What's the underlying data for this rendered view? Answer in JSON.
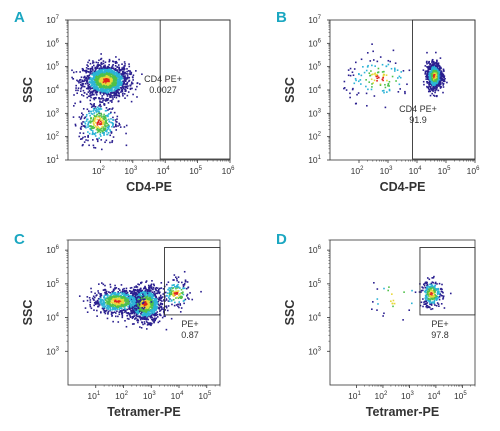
{
  "colors": {
    "panel_letter": "#1ba7c1",
    "axis": "#333333",
    "density_low": "#2a1f8f",
    "density_mid_low": "#2bb3d6",
    "density_mid": "#4fc14a",
    "density_mid_high": "#e8d83a",
    "density_high": "#e0241c"
  },
  "chart_data": [
    {
      "panel": "A",
      "type": "scatter",
      "style": "density dot plot",
      "xlabel": "CD4-PE",
      "ylabel": "SSC",
      "xscale": "log",
      "yscale": "log",
      "xlim": [
        10.0,
        1000000.0
      ],
      "ylim": [
        10.0,
        10000000.0
      ],
      "xticks": [
        "10^2",
        "10^3",
        "10^4",
        "10^5",
        "10^6"
      ],
      "yticks": [
        "10^1",
        "10^2",
        "10^3",
        "10^4",
        "10^5",
        "10^6",
        "10^7"
      ],
      "populations": [
        {
          "x_center": 150,
          "y_center": 25000,
          "x_spread": 0.35,
          "y_spread": 0.35,
          "count": 1500
        },
        {
          "x_center": 90,
          "y_center": 400,
          "x_spread": 0.3,
          "y_spread": 0.45,
          "count": 350
        }
      ],
      "gate": {
        "name": "CD4 PE+",
        "value": "0.0027",
        "x_range": [
          7000,
          1000000
        ],
        "y_range": [
          11,
          10000000
        ]
      }
    },
    {
      "panel": "B",
      "type": "scatter",
      "style": "density dot plot",
      "xlabel": "CD4-PE",
      "ylabel": "SSC",
      "xscale": "log",
      "yscale": "log",
      "xlim": [
        10.0,
        1000000.0
      ],
      "ylim": [
        10.0,
        10000000.0
      ],
      "xticks": [
        "10^2",
        "10^3",
        "10^4",
        "10^5",
        "10^6"
      ],
      "yticks": [
        "10^1",
        "10^2",
        "10^3",
        "10^4",
        "10^5",
        "10^6",
        "10^7"
      ],
      "populations": [
        {
          "x_center": 40000,
          "y_center": 40000,
          "x_spread": 0.13,
          "y_spread": 0.28,
          "count": 900
        },
        {
          "x_center": 500,
          "y_center": 30000,
          "x_spread": 0.6,
          "y_spread": 0.45,
          "count": 130
        }
      ],
      "gate": {
        "name": "CD4 PE+",
        "value": "91.9",
        "x_range": [
          7000,
          1000000
        ],
        "y_range": [
          11,
          10000000
        ]
      }
    },
    {
      "panel": "C",
      "type": "scatter",
      "style": "density dot plot",
      "xlabel": "Tetramer-PE",
      "ylabel": "SSC",
      "xscale": "log",
      "yscale": "log",
      "xlim": [
        1.0,
        300000.0
      ],
      "ylim": [
        100.0,
        2000000.0
      ],
      "xticks": [
        "10^1",
        "10^2",
        "10^3",
        "10^4",
        "10^5"
      ],
      "yticks": [
        "10^3",
        "10^4",
        "10^5",
        "10^6"
      ],
      "populations": [
        {
          "x_center": 600,
          "y_center": 25000,
          "x_spread": 0.3,
          "y_spread": 0.25,
          "count": 1100
        },
        {
          "x_center": 60,
          "y_center": 30000,
          "x_spread": 0.45,
          "y_spread": 0.18,
          "count": 700
        },
        {
          "x_center": 8000,
          "y_center": 50000,
          "x_spread": 0.25,
          "y_spread": 0.2,
          "count": 150
        }
      ],
      "gate": {
        "name": "PE+",
        "value": "0.87",
        "x_range": [
          3000,
          300000
        ],
        "y_range": [
          12000,
          1200000
        ]
      }
    },
    {
      "panel": "D",
      "type": "scatter",
      "style": "density dot plot",
      "xlabel": "Tetramer-PE",
      "ylabel": "SSC",
      "xscale": "log",
      "yscale": "log",
      "xlim": [
        1.0,
        300000.0
      ],
      "ylim": [
        100.0,
        2000000.0
      ],
      "xticks": [
        "10^1",
        "10^2",
        "10^3",
        "10^4",
        "10^5"
      ],
      "yticks": [
        "10^3",
        "10^4",
        "10^5",
        "10^6"
      ],
      "populations": [
        {
          "x_center": 7000,
          "y_center": 50000,
          "x_spread": 0.2,
          "y_spread": 0.2,
          "count": 260
        },
        {
          "x_center": 300,
          "y_center": 40000,
          "x_spread": 0.5,
          "y_spread": 0.35,
          "count": 25
        }
      ],
      "gate": {
        "name": "PE+",
        "value": "97.8",
        "x_range": [
          2500,
          300000
        ],
        "y_range": [
          12000,
          1200000
        ]
      }
    }
  ]
}
